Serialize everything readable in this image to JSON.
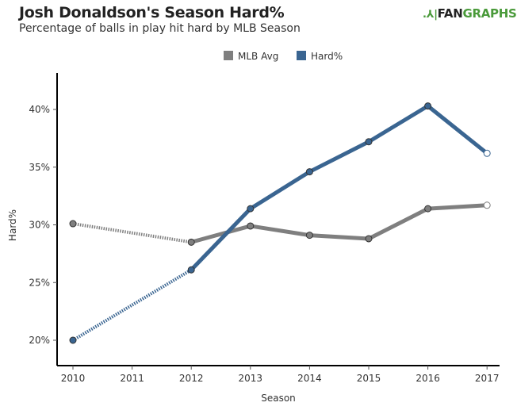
{
  "header": {
    "title": "Josh Donaldson's Season Hard%",
    "subtitle": "Percentage of balls in play hit hard by MLB Season",
    "logo_prefix": "FAN",
    "logo_suffix": "GRAPHS"
  },
  "chart_data": {
    "type": "line",
    "title": "Josh Donaldson's Season Hard%",
    "subtitle": "Percentage of balls in play hit hard by MLB Season",
    "xlabel": "Season",
    "ylabel": "Hard%",
    "x": [
      2010,
      2011,
      2012,
      2013,
      2014,
      2015,
      2016,
      2017
    ],
    "x_ticks": [
      "2010",
      "2011",
      "2012",
      "2013",
      "2014",
      "2015",
      "2016",
      "2017"
    ],
    "y_ticks": [
      "20%",
      "25%",
      "30%",
      "35%",
      "40%"
    ],
    "y_tick_values": [
      20,
      25,
      30,
      35,
      40
    ],
    "ylim": [
      18.8,
      42.5
    ],
    "xlim": [
      2009.8,
      2017.2
    ],
    "legend_position": "top-center",
    "grid": false,
    "series": [
      {
        "name": "MLB Avg",
        "color": "#7f7f7f",
        "x": [
          2010,
          2012,
          2013,
          2014,
          2015,
          2016,
          2017
        ],
        "values": [
          30.1,
          28.5,
          29.9,
          29.1,
          28.8,
          31.4,
          31.7
        ],
        "dotted_segments": [
          [
            2010,
            2012
          ]
        ],
        "open_last_point": true
      },
      {
        "name": "Hard%",
        "color": "#3a6591",
        "x": [
          2010,
          2012,
          2013,
          2014,
          2015,
          2016,
          2017
        ],
        "values": [
          20.0,
          26.1,
          31.4,
          34.6,
          37.2,
          40.3,
          36.2
        ],
        "dotted_segments": [
          [
            2010,
            2012
          ]
        ],
        "open_last_point": true
      }
    ]
  }
}
